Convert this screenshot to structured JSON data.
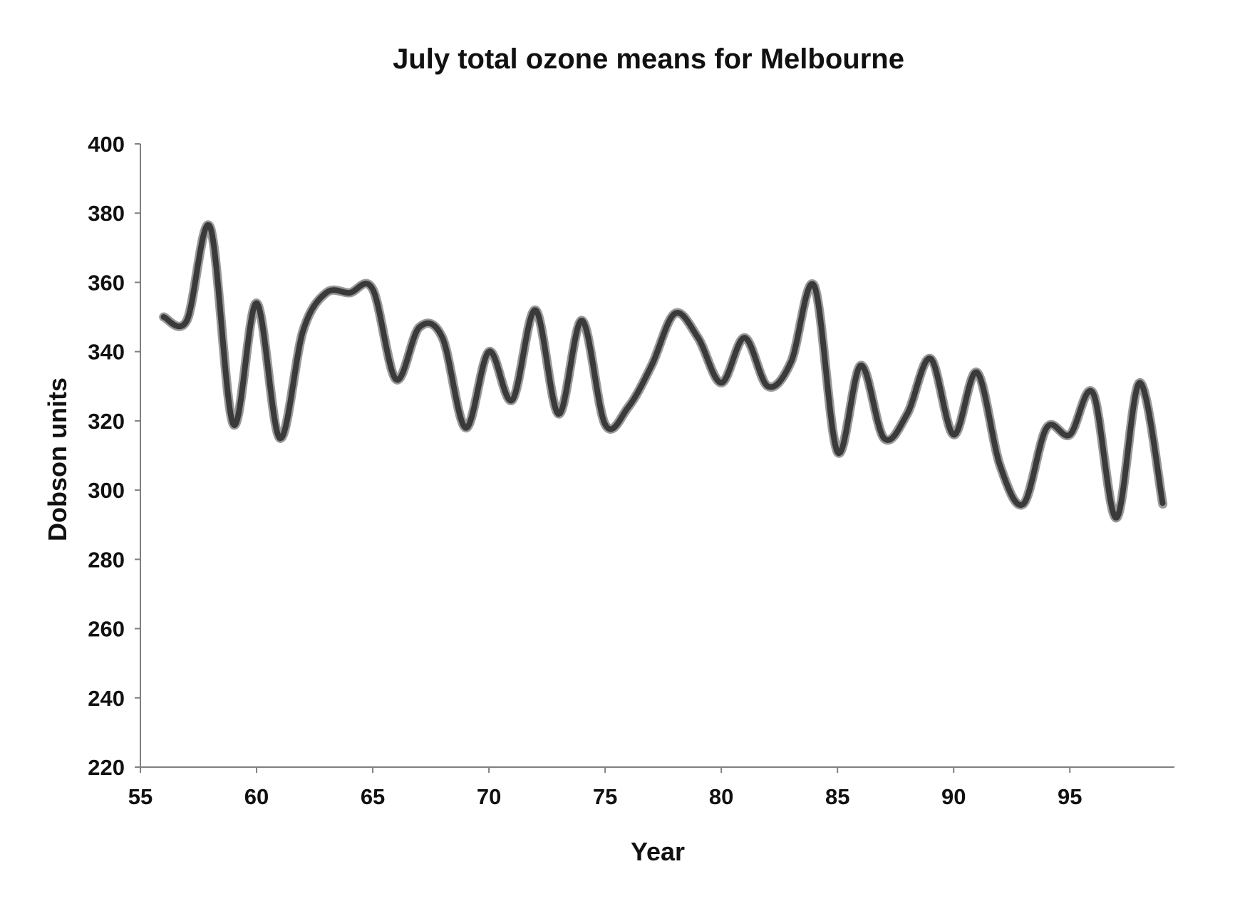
{
  "chart_data": {
    "type": "line",
    "title": "July total ozone means for Melbourne",
    "xlabel": "Year",
    "ylabel": "Dobson units",
    "xlim": [
      55,
      99.5
    ],
    "ylim": [
      220,
      400
    ],
    "xticks": [
      55,
      60,
      65,
      70,
      75,
      80,
      85,
      90,
      95
    ],
    "yticks": [
      220,
      240,
      260,
      280,
      300,
      320,
      340,
      360,
      380,
      400
    ],
    "grid": false,
    "legend": "none",
    "series": [
      {
        "color": "#3a3a3a",
        "x": [
          56,
          57,
          58,
          59,
          60,
          61,
          62,
          63,
          64,
          65,
          66,
          67,
          68,
          69,
          70,
          71,
          72,
          73,
          74,
          75,
          76,
          77,
          78,
          79,
          80,
          81,
          82,
          83,
          84,
          85,
          86,
          87,
          88,
          89,
          90,
          91,
          92,
          93,
          94,
          95,
          96,
          97,
          98,
          99
        ],
        "y": [
          350,
          349,
          376,
          319,
          354,
          315,
          346,
          357,
          357,
          358,
          332,
          347,
          344,
          318,
          340,
          326,
          352,
          322,
          349,
          319,
          324,
          336,
          351,
          344,
          331,
          344,
          330,
          337,
          359,
          311,
          336,
          315,
          322,
          338,
          316,
          334,
          307,
          296,
          318,
          316,
          328,
          292,
          331,
          296
        ]
      }
    ]
  }
}
